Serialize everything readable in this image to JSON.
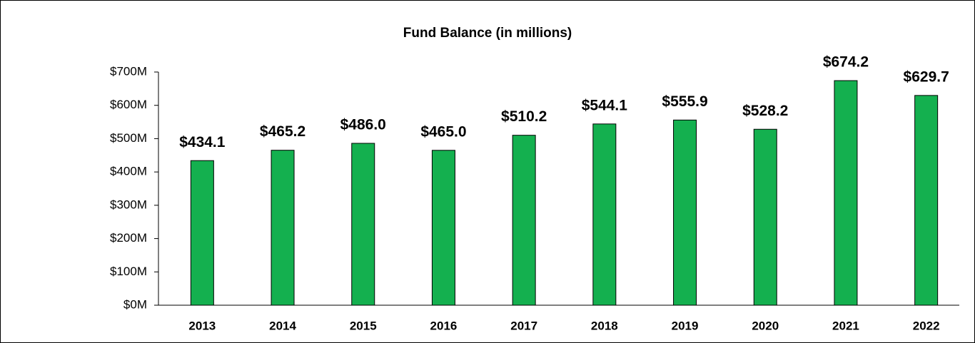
{
  "chart_data": {
    "type": "bar",
    "title": "Fund Balance (in millions)",
    "categories": [
      "2013",
      "2014",
      "2015",
      "2016",
      "2017",
      "2018",
      "2019",
      "2020",
      "2021",
      "2022"
    ],
    "values": [
      434.1,
      465.2,
      486.0,
      465.0,
      510.2,
      544.1,
      555.9,
      528.2,
      674.2,
      629.7
    ],
    "value_labels": [
      "$434.1",
      "$465.2",
      "$486.0",
      "$465.0",
      "$510.2",
      "$544.1",
      "$555.9",
      "$528.2",
      "$674.2",
      "$629.7"
    ],
    "color": "#14b04f",
    "ylim": [
      0,
      700
    ],
    "yticks": [
      {
        "value": 0,
        "label": "$0M"
      },
      {
        "value": 100,
        "label": "$100M"
      },
      {
        "value": 200,
        "label": "$200M"
      },
      {
        "value": 300,
        "label": "$300M"
      },
      {
        "value": 400,
        "label": "$400M"
      },
      {
        "value": 500,
        "label": "$500M"
      },
      {
        "value": 600,
        "label": "$600M"
      },
      {
        "value": 700,
        "label": "$700M"
      }
    ],
    "grid": false
  }
}
